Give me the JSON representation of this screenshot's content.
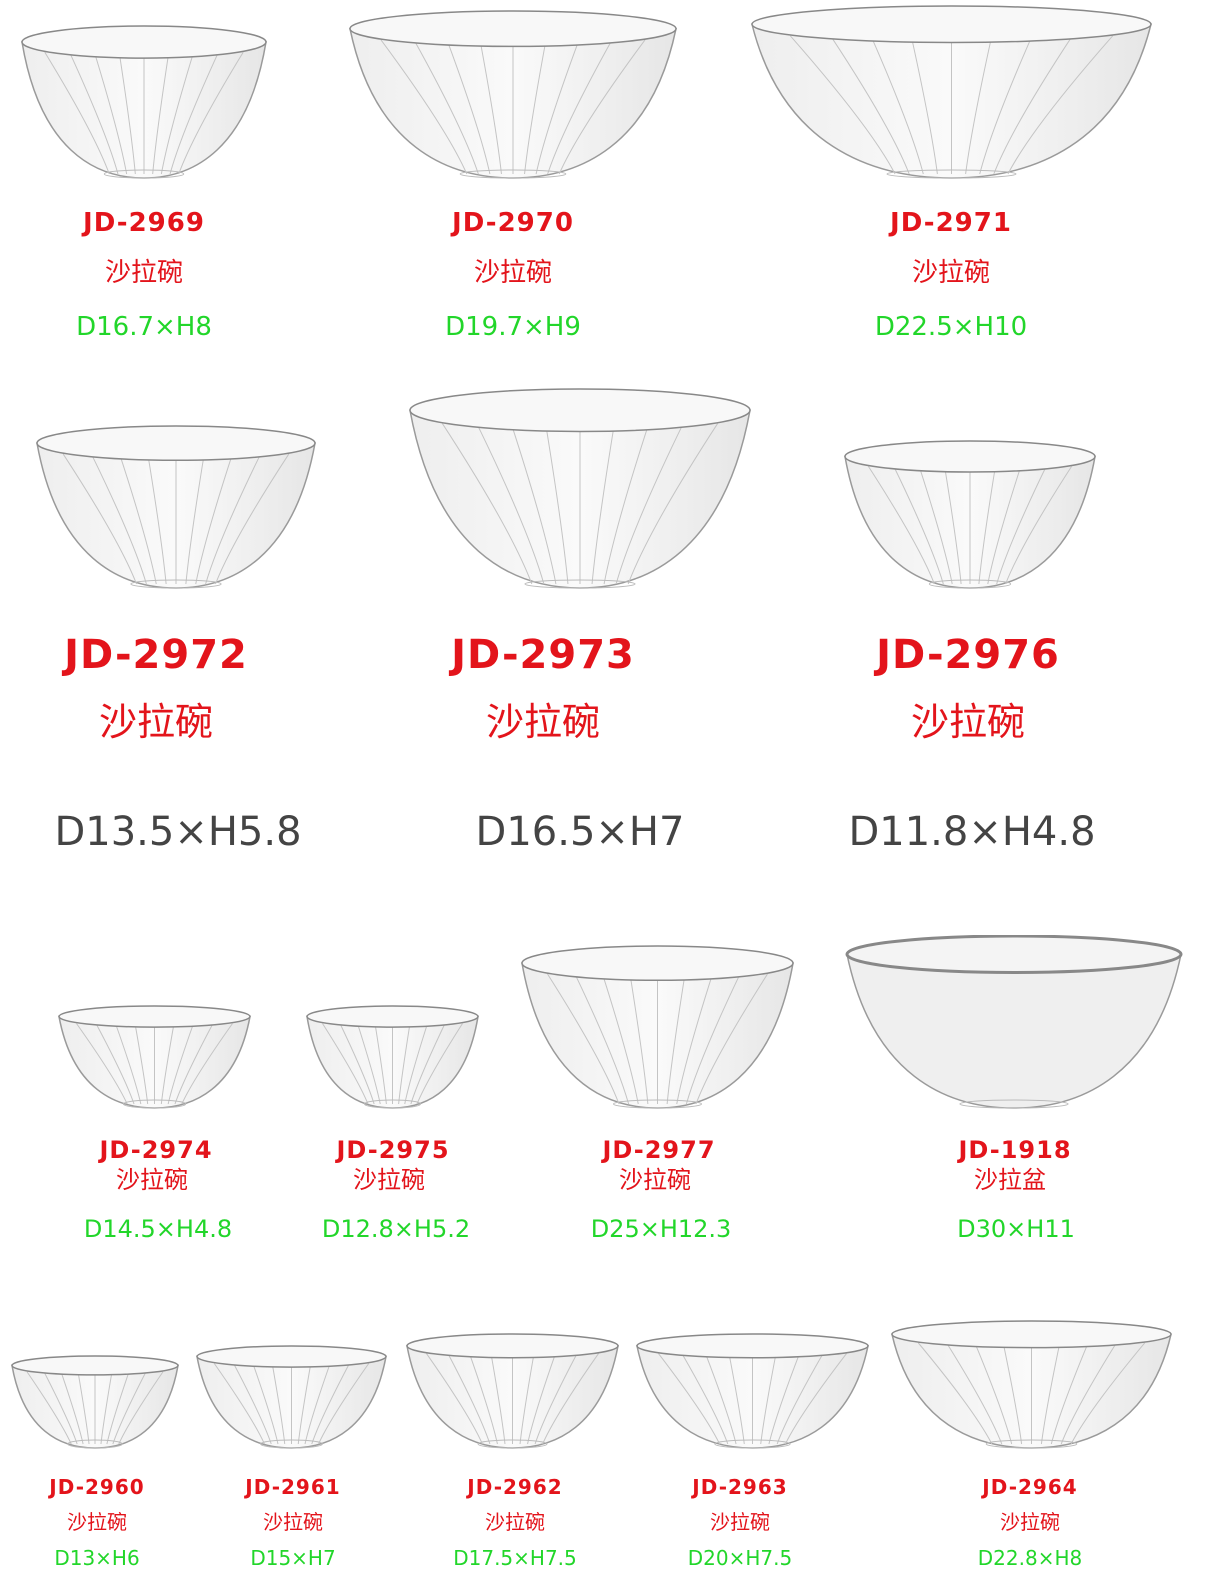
{
  "colors": {
    "code": "#e3141b",
    "name": "#e3141b",
    "dims_green": "#22d62a",
    "dims_gray": "#444444"
  },
  "rows": [
    {
      "style": "green",
      "items": [
        {
          "code": "JD-2969",
          "name": "沙拉碗",
          "dims": "D16.7×H8",
          "icon": "glass-bowl-image"
        },
        {
          "code": "JD-2970",
          "name": "沙拉碗",
          "dims": "D19.7×H9",
          "icon": "glass-bowl-image"
        },
        {
          "code": "JD-2971",
          "name": "沙拉碗",
          "dims": "D22.5×H10",
          "icon": "glass-bowl-image"
        }
      ]
    },
    {
      "style": "gray",
      "items": [
        {
          "code": "JD-2972",
          "name": "沙拉碗",
          "dims": "D13.5×H5.8",
          "icon": "glass-bowl-image"
        },
        {
          "code": "JD-2973",
          "name": "沙拉碗",
          "dims": "D16.5×H7",
          "icon": "glass-bowl-image"
        },
        {
          "code": "JD-2976",
          "name": "沙拉碗",
          "dims": "D11.8×H4.8",
          "icon": "glass-bowl-image"
        }
      ]
    },
    {
      "style": "green",
      "items": [
        {
          "code": "JD-2974",
          "name": "沙拉碗",
          "dims": "D14.5×H4.8",
          "icon": "glass-bowl-image"
        },
        {
          "code": "JD-2975",
          "name": "沙拉碗",
          "dims": "D12.8×H5.2",
          "icon": "glass-bowl-image"
        },
        {
          "code": "JD-2977",
          "name": "沙拉碗",
          "dims": "D25×H12.3",
          "icon": "glass-bowl-image"
        },
        {
          "code": "JD-1918",
          "name": "沙拉盆",
          "dims": "D30×H11",
          "icon": "plastic-basin-image"
        }
      ]
    },
    {
      "style": "green",
      "items": [
        {
          "code": "JD-2960",
          "name": "沙拉碗",
          "dims": "D13×H6",
          "icon": "glass-bowl-image"
        },
        {
          "code": "JD-2961",
          "name": "沙拉碗",
          "dims": "D15×H7",
          "icon": "glass-bowl-image"
        },
        {
          "code": "JD-2962",
          "name": "沙拉碗",
          "dims": "D17.5×H7.5",
          "icon": "glass-bowl-image"
        },
        {
          "code": "JD-2963",
          "name": "沙拉碗",
          "dims": "D20×H7.5",
          "icon": "glass-bowl-image"
        },
        {
          "code": "JD-2964",
          "name": "沙拉碗",
          "dims": "D22.8×H8",
          "icon": "glass-bowl-image"
        }
      ]
    }
  ]
}
